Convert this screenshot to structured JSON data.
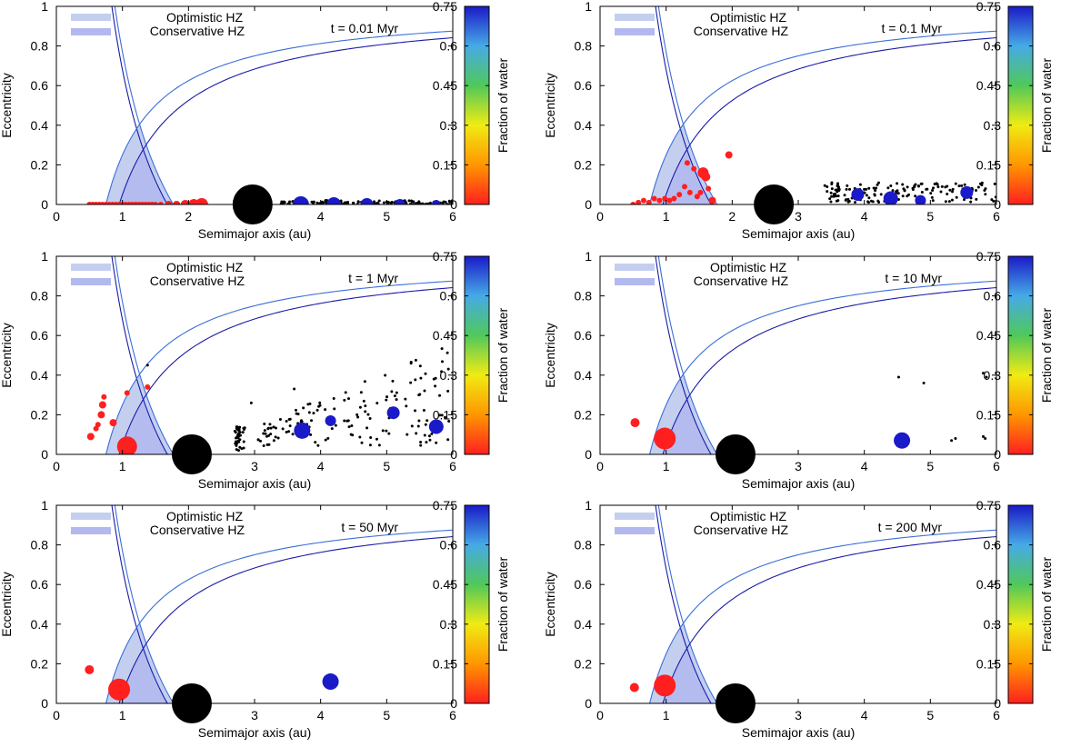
{
  "colors": {
    "optimistic_fill": "#c4cff0",
    "conservative_fill": "#b3b9ee",
    "optimistic_line": "#3a6fd8",
    "conservative_line": "#1a1aa8",
    "rocky_dry": "#ff1f1f",
    "water_rich": "#1a1acc",
    "embryo": "#000000",
    "giant": "#000000"
  },
  "chart_data": {
    "type": "scatter",
    "xlabel": "Semimajor axis (au)",
    "ylabel": "Eccentricity",
    "colorbar_label": "Fraction of water",
    "xlim": [
      0,
      6
    ],
    "ylim": [
      0,
      1
    ],
    "xticks": [
      "0",
      "1",
      "2",
      "3",
      "4",
      "5",
      "6"
    ],
    "yticks": [
      "0",
      "0.2",
      "0.4",
      "0.6",
      "0.8",
      "1"
    ],
    "colorbar_ticks": [
      "0",
      "0.15",
      "0.3",
      "0.45",
      "0.6",
      "0.75"
    ],
    "colorbar_range": [
      0,
      0.75
    ],
    "legend": [
      "Optimistic HZ",
      "Conservative HZ"
    ],
    "hz_bounds_au": {
      "optimistic_inner": 0.75,
      "conservative_inner": 0.95,
      "conservative_outer": 1.68,
      "optimistic_outer": 1.77
    },
    "panels": [
      {
        "time_label": "t = 0.01 Myr",
        "giant": {
          "a": 2.97,
          "e": 0.0
        },
        "planets": [
          {
            "a": 0.5,
            "e": 0,
            "w": 0,
            "s": 3
          },
          {
            "a": 0.55,
            "e": 0,
            "w": 0,
            "s": 3
          },
          {
            "a": 0.6,
            "e": 0,
            "w": 0,
            "s": 3
          },
          {
            "a": 0.65,
            "e": 0,
            "w": 0,
            "s": 3
          },
          {
            "a": 0.7,
            "e": 0,
            "w": 0,
            "s": 3
          },
          {
            "a": 0.75,
            "e": 0,
            "w": 0,
            "s": 3
          },
          {
            "a": 0.8,
            "e": 0,
            "w": 0,
            "s": 3
          },
          {
            "a": 0.85,
            "e": 0,
            "w": 0,
            "s": 3
          },
          {
            "a": 0.9,
            "e": 0,
            "w": 0,
            "s": 3
          },
          {
            "a": 0.95,
            "e": 0,
            "w": 0,
            "s": 3
          },
          {
            "a": 1.0,
            "e": 0,
            "w": 0,
            "s": 3
          },
          {
            "a": 1.05,
            "e": 0,
            "w": 0,
            "s": 3
          },
          {
            "a": 1.1,
            "e": 0,
            "w": 0,
            "s": 3
          },
          {
            "a": 1.15,
            "e": 0,
            "w": 0,
            "s": 3
          },
          {
            "a": 1.2,
            "e": 0,
            "w": 0,
            "s": 3
          },
          {
            "a": 1.25,
            "e": 0,
            "w": 0,
            "s": 3
          },
          {
            "a": 1.3,
            "e": 0,
            "w": 0,
            "s": 3
          },
          {
            "a": 1.35,
            "e": 0,
            "w": 0,
            "s": 3
          },
          {
            "a": 1.4,
            "e": 0,
            "w": 0,
            "s": 3
          },
          {
            "a": 1.45,
            "e": 0,
            "w": 0,
            "s": 3
          },
          {
            "a": 1.5,
            "e": 0,
            "w": 0,
            "s": 3
          },
          {
            "a": 1.58,
            "e": 0,
            "w": 0,
            "s": 3
          },
          {
            "a": 1.7,
            "e": 0,
            "w": 0,
            "s": 4
          },
          {
            "a": 1.82,
            "e": 0,
            "w": 0,
            "s": 4
          },
          {
            "a": 1.95,
            "e": 0,
            "w": 0,
            "s": 5
          },
          {
            "a": 2.08,
            "e": 0,
            "w": 0,
            "s": 6
          },
          {
            "a": 2.2,
            "e": 0,
            "w": 0,
            "s": 7
          },
          {
            "a": 3.7,
            "e": 0,
            "w": 0.75,
            "s": 9
          },
          {
            "a": 4.2,
            "e": 0,
            "w": 0.75,
            "s": 8
          },
          {
            "a": 4.7,
            "e": 0,
            "w": 0.75,
            "s": 7
          },
          {
            "a": 5.2,
            "e": 0,
            "w": 0.75,
            "s": 6
          },
          {
            "a": 5.75,
            "e": 0,
            "w": 0.75,
            "s": 5
          }
        ],
        "embryos": {
          "mode": "band",
          "n": 130,
          "amin": 3.35,
          "amax": 6.0,
          "emin": 0.0,
          "emax": 0.02,
          "seed": 11
        }
      },
      {
        "time_label": "t = 0.1 Myr",
        "giant": {
          "a": 2.63,
          "e": 0.0
        },
        "planets": [
          {
            "a": 0.5,
            "e": 0.0,
            "w": 0,
            "s": 3
          },
          {
            "a": 0.58,
            "e": 0.01,
            "w": 0,
            "s": 3
          },
          {
            "a": 0.66,
            "e": 0.02,
            "w": 0,
            "s": 3
          },
          {
            "a": 0.74,
            "e": 0.01,
            "w": 0,
            "s": 3
          },
          {
            "a": 0.82,
            "e": 0.03,
            "w": 0,
            "s": 3
          },
          {
            "a": 0.9,
            "e": 0.02,
            "w": 0,
            "s": 3
          },
          {
            "a": 0.98,
            "e": 0.03,
            "w": 0,
            "s": 3
          },
          {
            "a": 1.05,
            "e": 0.02,
            "w": 0,
            "s": 3
          },
          {
            "a": 1.12,
            "e": 0.03,
            "w": 0,
            "s": 3
          },
          {
            "a": 1.2,
            "e": 0.05,
            "w": 0,
            "s": 3
          },
          {
            "a": 1.28,
            "e": 0.09,
            "w": 0,
            "s": 3
          },
          {
            "a": 1.32,
            "e": 0.21,
            "w": 0,
            "s": 3
          },
          {
            "a": 1.36,
            "e": 0.06,
            "w": 0,
            "s": 3
          },
          {
            "a": 1.42,
            "e": 0.18,
            "w": 0,
            "s": 3
          },
          {
            "a": 1.47,
            "e": 0.04,
            "w": 0,
            "s": 3
          },
          {
            "a": 1.52,
            "e": 0.06,
            "w": 0,
            "s": 3
          },
          {
            "a": 1.56,
            "e": 0.16,
            "w": 0,
            "s": 6
          },
          {
            "a": 1.6,
            "e": 0.14,
            "w": 0,
            "s": 5
          },
          {
            "a": 1.64,
            "e": 0.08,
            "w": 0,
            "s": 3
          },
          {
            "a": 1.7,
            "e": 0.02,
            "w": 0,
            "s": 4
          },
          {
            "a": 1.95,
            "e": 0.25,
            "w": 0,
            "s": 4
          },
          {
            "a": 3.9,
            "e": 0.05,
            "w": 0.75,
            "s": 7
          },
          {
            "a": 4.4,
            "e": 0.03,
            "w": 0.75,
            "s": 8
          },
          {
            "a": 4.85,
            "e": 0.02,
            "w": 0.75,
            "s": 6
          },
          {
            "a": 5.55,
            "e": 0.06,
            "w": 0.75,
            "s": 7
          }
        ],
        "embryos": {
          "mode": "band",
          "n": 150,
          "amin": 3.4,
          "amax": 6.0,
          "emin": 0.01,
          "emax": 0.11,
          "seed": 23
        }
      },
      {
        "time_label": "t = 1 Myr",
        "giant": {
          "a": 2.05,
          "e": 0.0
        },
        "planets": [
          {
            "a": 0.52,
            "e": 0.09,
            "w": 0,
            "s": 4
          },
          {
            "a": 0.6,
            "e": 0.13,
            "w": 0,
            "s": 3
          },
          {
            "a": 0.63,
            "e": 0.15,
            "w": 0,
            "s": 3
          },
          {
            "a": 0.68,
            "e": 0.2,
            "w": 0,
            "s": 4
          },
          {
            "a": 0.7,
            "e": 0.25,
            "w": 0,
            "s": 4
          },
          {
            "a": 0.72,
            "e": 0.29,
            "w": 0,
            "s": 3
          },
          {
            "a": 0.86,
            "e": 0.16,
            "w": 0,
            "s": 4
          },
          {
            "a": 1.07,
            "e": 0.31,
            "w": 0,
            "s": 3
          },
          {
            "a": 1.38,
            "e": 0.34,
            "w": 0,
            "s": 3
          },
          {
            "a": 1.07,
            "e": 0.04,
            "w": 0,
            "s": 11
          },
          {
            "a": 3.72,
            "e": 0.12,
            "w": 0.75,
            "s": 9
          },
          {
            "a": 4.15,
            "e": 0.17,
            "w": 0.75,
            "s": 6
          },
          {
            "a": 5.1,
            "e": 0.21,
            "w": 0.75,
            "s": 7
          },
          {
            "a": 5.75,
            "e": 0.14,
            "w": 0.75,
            "s": 8
          }
        ],
        "embryos": {
          "mode": "mixed",
          "n": 190,
          "seed": 37
        }
      },
      {
        "time_label": "t = 10 Myr",
        "giant": {
          "a": 2.05,
          "e": 0.0
        },
        "planets": [
          {
            "a": 0.53,
            "e": 0.16,
            "w": 0,
            "s": 5
          },
          {
            "a": 0.98,
            "e": 0.08,
            "w": 0,
            "s": 12
          },
          {
            "a": 4.57,
            "e": 0.07,
            "w": 0.75,
            "s": 9
          }
        ],
        "embryos": {
          "mode": "list",
          "points": [
            [
              4.52,
              0.39
            ],
            [
              4.9,
              0.36
            ],
            [
              5.8,
              0.41
            ],
            [
              5.85,
              0.39
            ],
            [
              6.0,
              0.41
            ],
            [
              5.32,
              0.07
            ],
            [
              5.38,
              0.08
            ],
            [
              5.8,
              0.09
            ],
            [
              5.83,
              0.08
            ]
          ]
        }
      },
      {
        "time_label": "t = 50 Myr",
        "giant": {
          "a": 2.05,
          "e": 0.0
        },
        "planets": [
          {
            "a": 0.5,
            "e": 0.17,
            "w": 0,
            "s": 5
          },
          {
            "a": 0.95,
            "e": 0.07,
            "w": 0,
            "s": 12
          },
          {
            "a": 4.15,
            "e": 0.11,
            "w": 0.75,
            "s": 9
          }
        ],
        "embryos": {
          "mode": "list",
          "points": []
        }
      },
      {
        "time_label": "t = 200 Myr",
        "giant": {
          "a": 2.05,
          "e": 0.0
        },
        "planets": [
          {
            "a": 0.52,
            "e": 0.08,
            "w": 0,
            "s": 5
          },
          {
            "a": 0.98,
            "e": 0.09,
            "w": 0,
            "s": 12
          }
        ],
        "embryos": {
          "mode": "list",
          "points": []
        }
      }
    ]
  }
}
